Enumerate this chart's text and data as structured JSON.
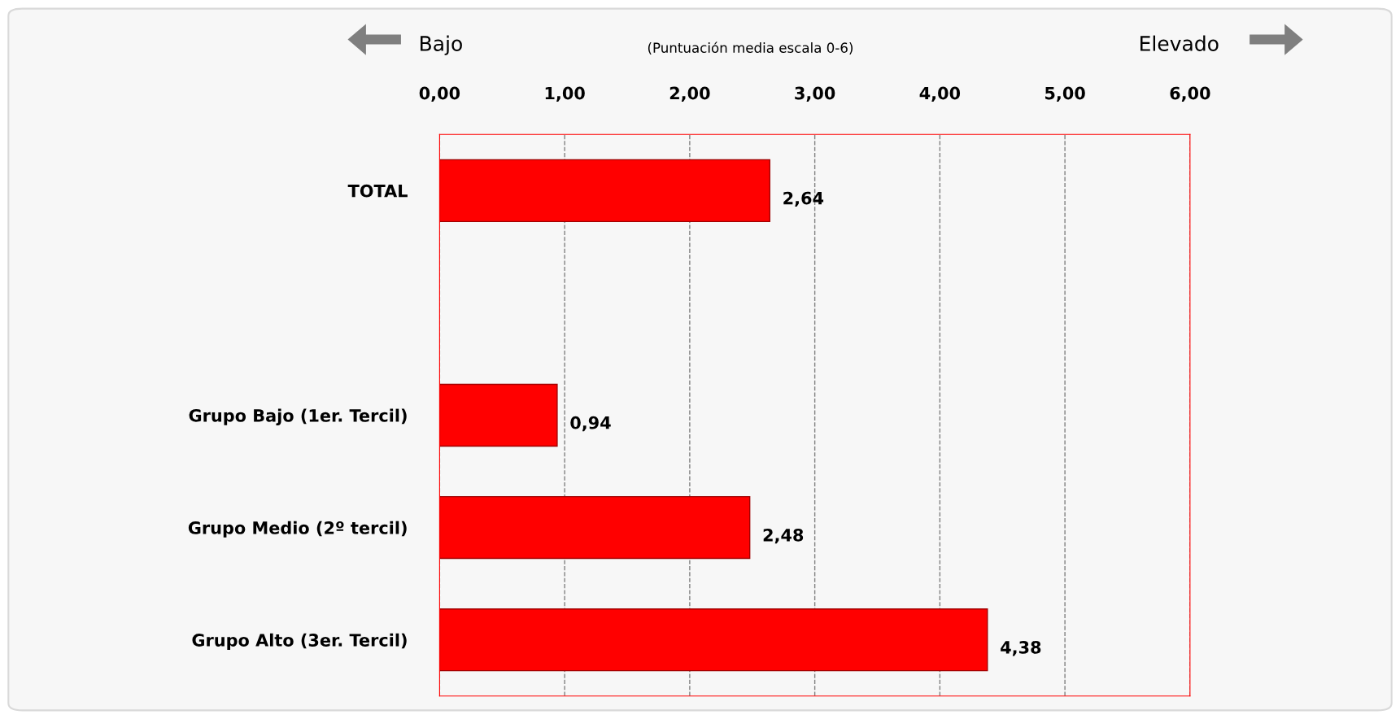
{
  "chart_data": {
    "type": "bar",
    "orientation": "horizontal",
    "subtitle": "(Puntuación media escala 0-6)",
    "annotations": [
      "Bajo",
      "Elevado"
    ],
    "categories": [
      "TOTAL",
      null,
      "Grupo Bajo (1er. Tercil)",
      "Grupo Medio (2º tercil)",
      "Grupo Alto (3er. Tercil)"
    ],
    "values": [
      2.64,
      null,
      0.94,
      2.48,
      4.38
    ],
    "value_labels": [
      "2,64",
      null,
      "0,94",
      "2,48",
      "4,38"
    ],
    "color": "#ff0000",
    "xlim": [
      0,
      6
    ],
    "xticks": [
      {
        "value": 0,
        "label": "0,00"
      },
      {
        "value": 1,
        "label": "1,00"
      },
      {
        "value": 2,
        "label": "2,00"
      },
      {
        "value": 3,
        "label": "3,00"
      },
      {
        "value": 4,
        "label": "4,00"
      },
      {
        "value": 5,
        "label": "5,00"
      },
      {
        "value": 6,
        "label": "6,00"
      }
    ],
    "grid": "x",
    "line_style": "dashed"
  }
}
